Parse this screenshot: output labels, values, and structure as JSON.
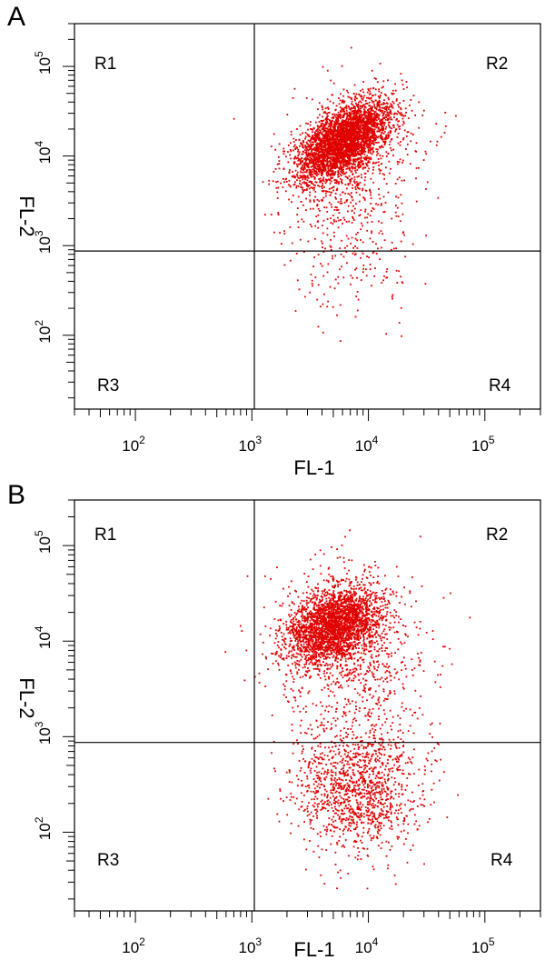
{
  "chart_data": [
    {
      "type": "scatter",
      "panel_label": "A",
      "xlabel": "FL-1",
      "ylabel": "FL-2",
      "x_scale": "log",
      "y_scale": "log",
      "xlim": [
        30,
        300000
      ],
      "ylim": [
        15,
        300000
      ],
      "x_ticks": [
        {
          "base": "10",
          "exp": "2",
          "value": 100
        },
        {
          "base": "10",
          "exp": "3",
          "value": 1000
        },
        {
          "base": "10",
          "exp": "4",
          "value": 10000
        },
        {
          "base": "10",
          "exp": "5",
          "value": 100000
        }
      ],
      "y_ticks": [
        {
          "base": "10",
          "exp": "2",
          "value": 100
        },
        {
          "base": "10",
          "exp": "3",
          "value": 1000
        },
        {
          "base": "10",
          "exp": "4",
          "value": 10000
        },
        {
          "base": "10",
          "exp": "5",
          "value": 100000
        }
      ],
      "gates": {
        "x": 1050,
        "y": 870
      },
      "regions": [
        "R1",
        "R2",
        "R3",
        "R4"
      ],
      "point_color": "#e00000",
      "clusters": [
        {
          "cx": 6000,
          "cy": 15000,
          "sx_dec": 0.2,
          "sy_dec": 0.22,
          "rho": 0.55,
          "n": 3400
        },
        {
          "cx": 6500,
          "cy": 8000,
          "sx_dec": 0.3,
          "sy_dec": 0.42,
          "rho": 0.3,
          "n": 650
        },
        {
          "cx": 7500,
          "cy": 800,
          "sx_dec": 0.28,
          "sy_dec": 0.4,
          "rho": 0.1,
          "n": 190
        }
      ]
    },
    {
      "type": "scatter",
      "panel_label": "B",
      "xlabel": "FL-1",
      "ylabel": "FL-2",
      "x_scale": "log",
      "y_scale": "log",
      "xlim": [
        30,
        300000
      ],
      "ylim": [
        15,
        300000
      ],
      "x_ticks": [
        {
          "base": "10",
          "exp": "2",
          "value": 100
        },
        {
          "base": "10",
          "exp": "3",
          "value": 1000
        },
        {
          "base": "10",
          "exp": "4",
          "value": 10000
        },
        {
          "base": "10",
          "exp": "5",
          "value": 100000
        }
      ],
      "y_ticks": [
        {
          "base": "10",
          "exp": "2",
          "value": 100
        },
        {
          "base": "10",
          "exp": "3",
          "value": 1000
        },
        {
          "base": "10",
          "exp": "4",
          "value": 10000
        },
        {
          "base": "10",
          "exp": "5",
          "value": 100000
        }
      ],
      "gates": {
        "x": 1050,
        "y": 870
      },
      "regions": [
        "R1",
        "R2",
        "R3",
        "R4"
      ],
      "point_color": "#e00000",
      "clusters": [
        {
          "cx": 5000,
          "cy": 15000,
          "sx_dec": 0.2,
          "sy_dec": 0.2,
          "rho": 0.3,
          "n": 2600
        },
        {
          "cx": 7000,
          "cy": 7000,
          "sx_dec": 0.33,
          "sy_dec": 0.45,
          "rho": 0.0,
          "n": 800
        },
        {
          "cx": 8000,
          "cy": 300,
          "sx_dec": 0.27,
          "sy_dec": 0.35,
          "rho": 0.0,
          "n": 1300
        }
      ]
    }
  ]
}
